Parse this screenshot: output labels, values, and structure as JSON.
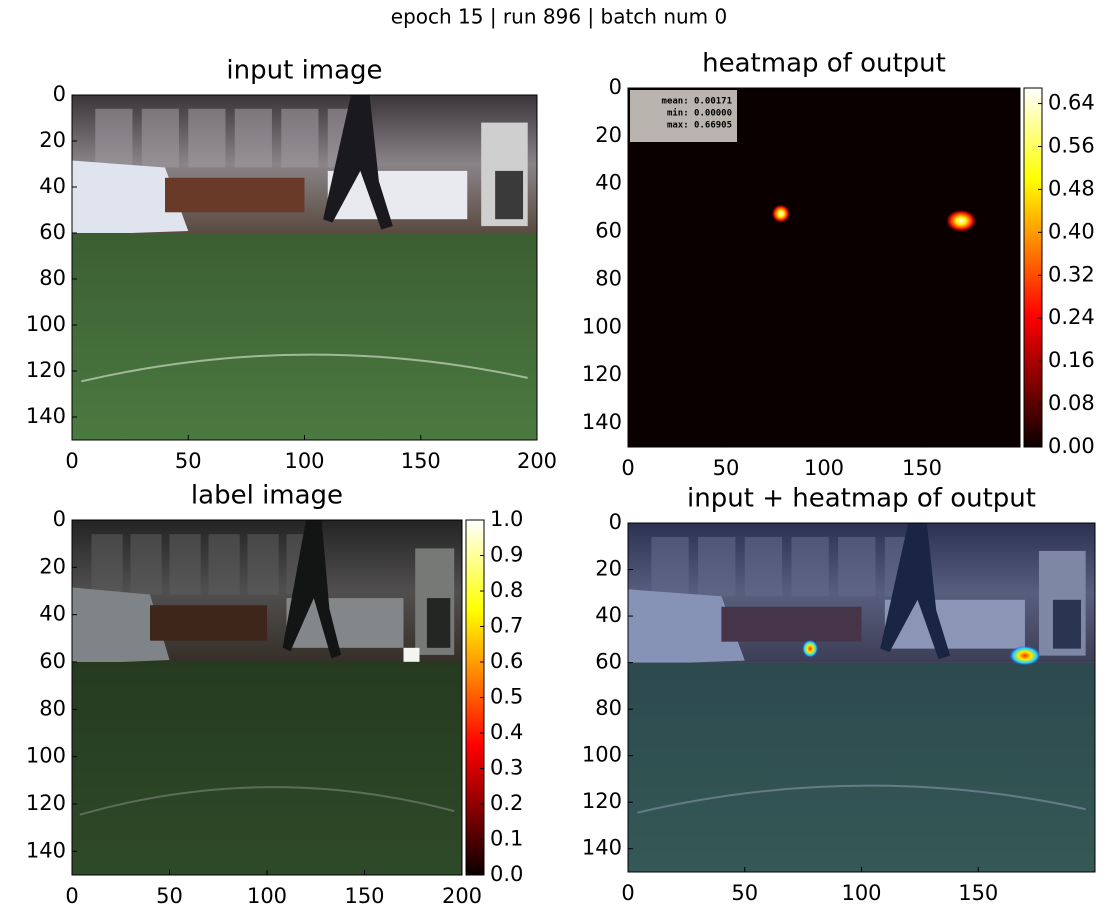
{
  "title": "epoch 15 | run 896 | batch num 0",
  "chart_data": [
    {
      "type": "image",
      "title": "input image",
      "xlim": [
        0,
        200
      ],
      "ylim": [
        150,
        0
      ],
      "xticks": [
        0,
        50,
        100,
        150,
        200
      ],
      "yticks": [
        0,
        20,
        40,
        60,
        80,
        100,
        120,
        140
      ]
    },
    {
      "type": "image",
      "title": "heatmap of output",
      "xlim": [
        0,
        200
      ],
      "ylim": [
        150,
        0
      ],
      "xticks": [
        0,
        50,
        100,
        150
      ],
      "yticks": [
        0,
        20,
        40,
        60,
        80,
        100,
        120,
        140
      ],
      "cmap": "hot",
      "colorbar": {
        "lim": [
          0,
          0.669
        ],
        "ticks": [
          {
            "value": 0,
            "label": "0.00"
          },
          0.08,
          0.16,
          0.24,
          0.32,
          {
            "value": 0.4,
            "label": "0.40"
          },
          0.48,
          0.56,
          0.64
        ]
      },
      "annotations": [
        "mean: 0.00171",
        "min: 0.00000",
        "max: 0.66905"
      ]
    },
    {
      "type": "image",
      "title": "label image",
      "xlim": [
        0,
        200
      ],
      "ylim": [
        150,
        0
      ],
      "xticks": [
        0,
        50,
        100,
        150,
        200
      ],
      "yticks": [
        0,
        20,
        40,
        60,
        80,
        100,
        120,
        140
      ],
      "cmap": "hot",
      "colorbar": {
        "lim": [
          0,
          1
        ],
        "ticks": [
          {
            "value": 0,
            "label": "0.0"
          },
          0.1,
          0.2,
          0.3,
          0.4,
          0.5,
          0.6,
          0.7,
          0.8,
          0.9,
          {
            "value": 1,
            "label": "1.0"
          }
        ]
      }
    },
    {
      "type": "image",
      "title": "input + heatmap of output",
      "xlim": [
        0,
        200
      ],
      "ylim": [
        150,
        0
      ],
      "xticks": [
        0,
        50,
        100,
        150
      ],
      "yticks": [
        0,
        20,
        40,
        60,
        80,
        100,
        120,
        140
      ]
    }
  ]
}
